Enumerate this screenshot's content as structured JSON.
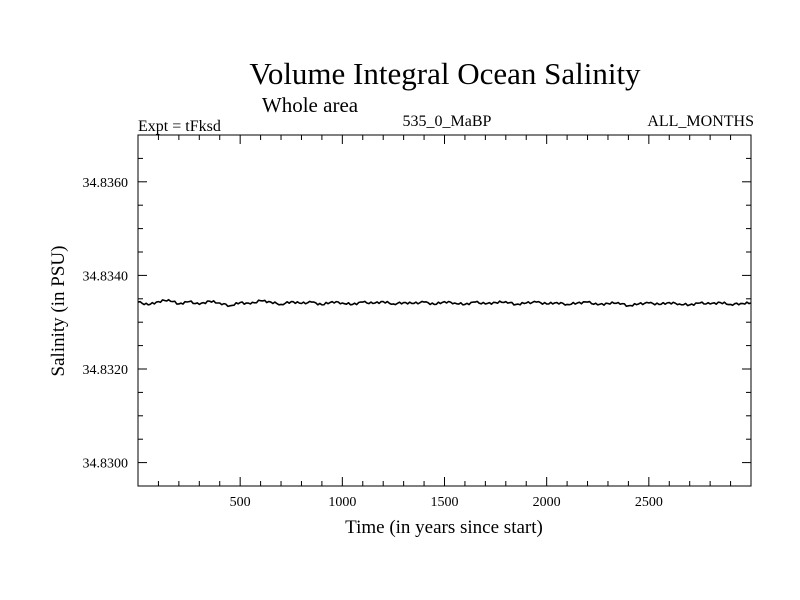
{
  "chart_data": {
    "type": "line",
    "title": "Volume Integral Ocean Salinity",
    "subtitle": "Whole area",
    "experiment_label": "Expt = tFksd",
    "period_label": "535_0_MaBP",
    "months_label": "ALL_MONTHS",
    "xlabel": "Time (in years since start)",
    "ylabel": "Salinity (in PSU)",
    "xlim": [
      0,
      3000
    ],
    "ylim": [
      34.8295,
      34.837
    ],
    "xticks": [
      500,
      1000,
      1500,
      2000,
      2500
    ],
    "xtick_labels": [
      "500",
      "1000",
      "1500",
      "2000",
      "2500"
    ],
    "yticks": [
      34.83,
      34.832,
      34.834,
      34.836
    ],
    "ytick_labels": [
      "34.8300",
      "34.8320",
      "34.8340",
      "34.8360"
    ],
    "x_minor_step": 100,
    "y_minor_step": 0.0005,
    "grid": false,
    "series": [
      {
        "name": "salinity",
        "color": "#000000",
        "x": [
          0,
          50,
          100,
          150,
          200,
          250,
          300,
          350,
          400,
          450,
          500,
          550,
          600,
          650,
          700,
          750,
          800,
          850,
          900,
          950,
          1000,
          1050,
          1100,
          1150,
          1200,
          1250,
          1300,
          1350,
          1400,
          1450,
          1500,
          1550,
          1600,
          1650,
          1700,
          1750,
          1800,
          1850,
          1900,
          1950,
          2000,
          2050,
          2100,
          2150,
          2200,
          2250,
          2300,
          2350,
          2400,
          2450,
          2500,
          2550,
          2600,
          2650,
          2700,
          2750,
          2800,
          2850,
          2900,
          2950,
          3000
        ],
        "values": [
          34.83343,
          34.83337,
          34.83344,
          34.83348,
          34.83339,
          34.83344,
          34.83338,
          34.83345,
          34.83341,
          34.83335,
          34.83342,
          34.83339,
          34.83346,
          34.83343,
          34.83338,
          34.83344,
          34.8334,
          34.83343,
          34.83337,
          34.83344,
          34.83341,
          34.83338,
          34.83343,
          34.8334,
          34.83344,
          34.83339,
          34.83342,
          34.8334,
          34.83343,
          34.83338,
          34.83344,
          34.83341,
          34.83338,
          34.83343,
          34.83339,
          34.83342,
          34.83344,
          34.83338,
          34.83341,
          34.83343,
          34.83339,
          34.83342,
          34.83338,
          34.83341,
          34.83343,
          34.83337,
          34.8334,
          34.83342,
          34.83335,
          34.83339,
          34.83341,
          34.83338,
          34.83342,
          34.83339,
          34.83337,
          34.83341,
          34.83339,
          34.83342,
          34.83338,
          34.8334,
          34.83341
        ]
      }
    ]
  }
}
